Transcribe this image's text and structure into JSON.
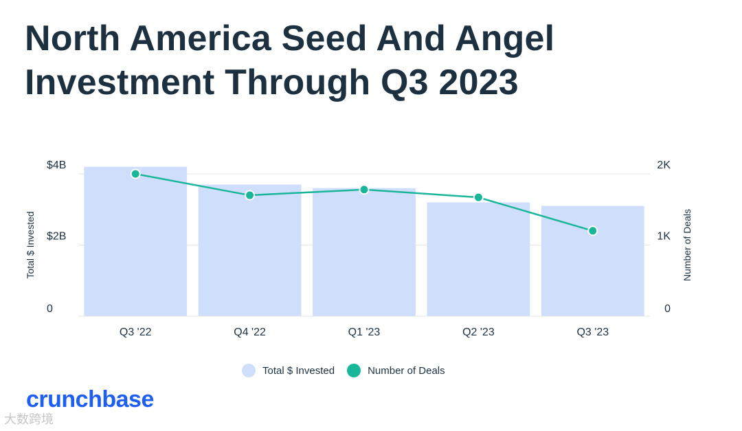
{
  "title": "North America Seed And Angel Investment Through Q3 2023",
  "colors": {
    "bar": "#cfdffb",
    "line": "#1ab69a",
    "grid": "#e6e6e6",
    "text": "#1c3040",
    "brand": "#1e5ef3"
  },
  "chart_data": {
    "type": "bar+line",
    "categories": [
      "Q3 '22",
      "Q4 '22",
      "Q1 '23",
      "Q2 '23",
      "Q3 '23"
    ],
    "series": [
      {
        "name": "Total $ Invested",
        "type": "bar",
        "axis": "left",
        "unit": "USD billions",
        "values": [
          4.2,
          3.7,
          3.6,
          3.2,
          3.1
        ]
      },
      {
        "name": "Number of Deals",
        "type": "line",
        "axis": "right",
        "values": [
          2000,
          1700,
          1780,
          1670,
          1200
        ]
      }
    ],
    "y_left": {
      "label": "Total $ Invested",
      "ylim": [
        0,
        4
      ],
      "ticks": [
        0,
        2,
        4
      ],
      "tick_labels": [
        "0",
        "$2B",
        "$4B"
      ]
    },
    "y_right": {
      "label": "Number of Deals",
      "ylim": [
        0,
        2000
      ],
      "ticks": [
        0,
        1000,
        2000
      ],
      "tick_labels": [
        "0",
        "1K",
        "2K"
      ]
    },
    "grid": true,
    "legend_position": "bottom"
  },
  "legend": {
    "items": [
      "Total $ Invested",
      "Number of Deals"
    ]
  },
  "brand": {
    "logo": "crunchbase"
  },
  "watermark": {
    "text": "大数跨境"
  }
}
